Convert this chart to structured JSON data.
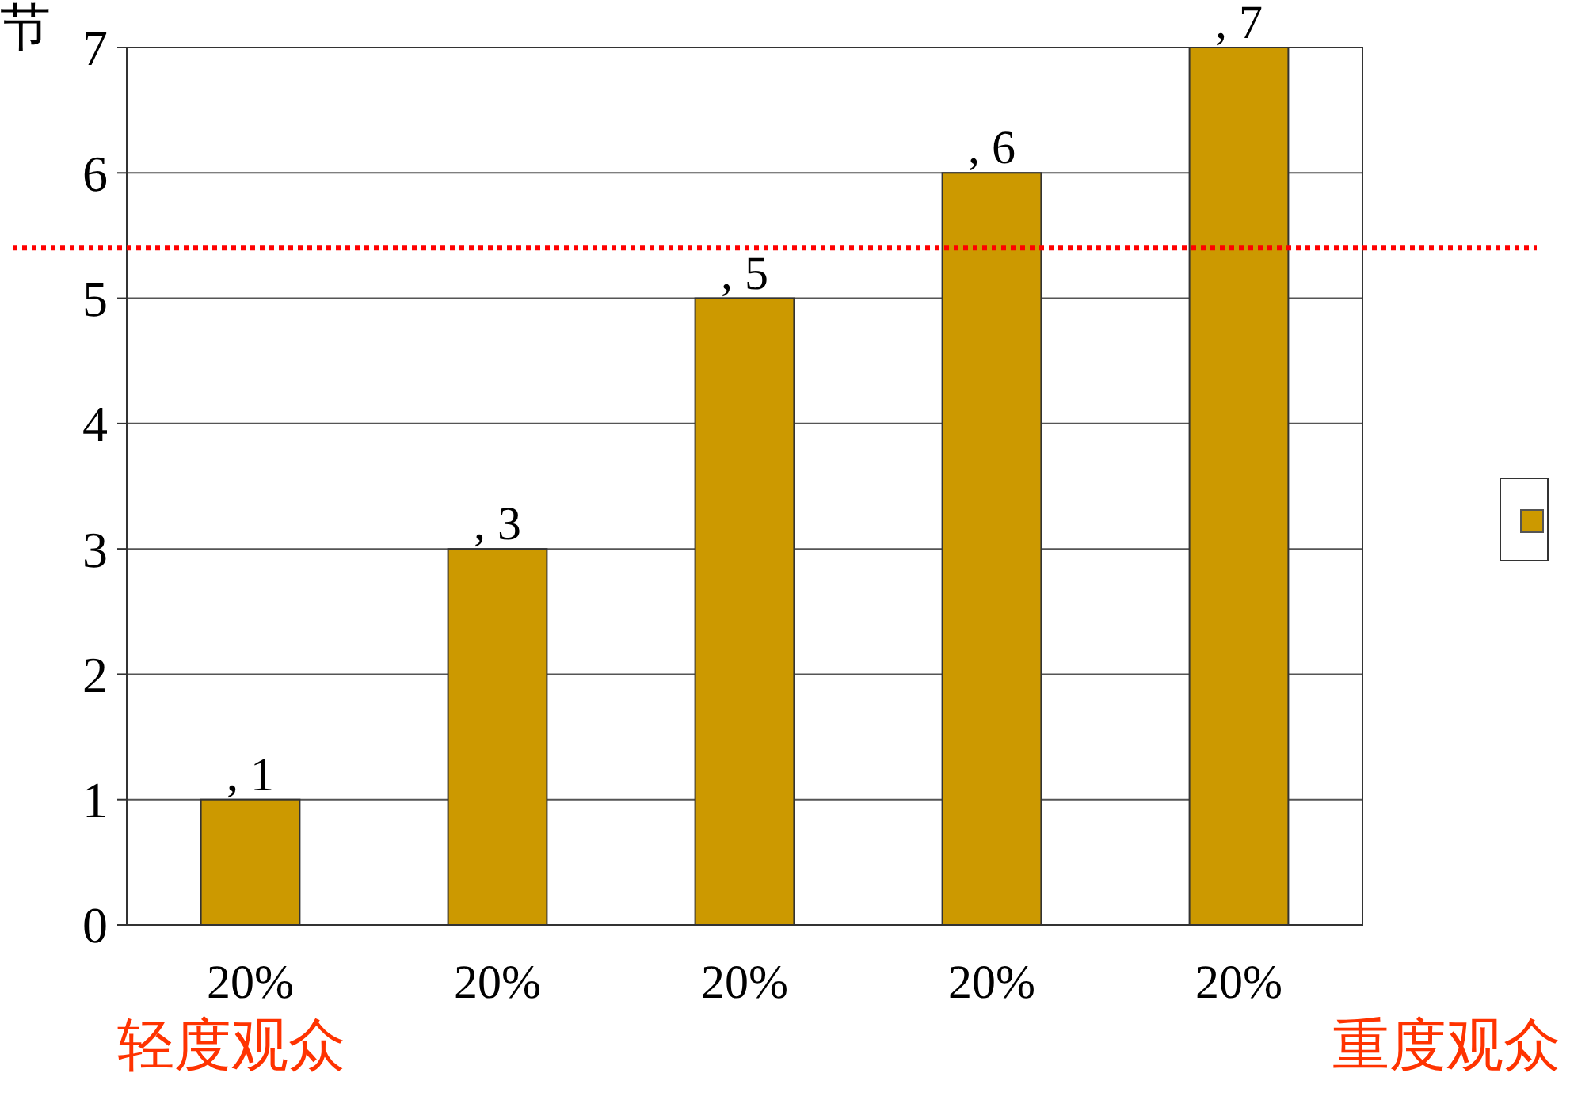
{
  "chart_data": {
    "type": "bar",
    "ylabel": "节",
    "categories": [
      "20%",
      "20%",
      "20%",
      "20%",
      "20%"
    ],
    "series": [
      {
        "color": "#cc9900",
        "values": [
          1,
          3,
          5,
          6,
          7
        ],
        "value_labels": [
          ", 1",
          ", 3",
          ", 5",
          ", 6",
          ", 7"
        ]
      }
    ],
    "ylim": [
      0,
      7
    ],
    "yticks": [
      0,
      1,
      2,
      3,
      4,
      5,
      6,
      7
    ],
    "grid": "y",
    "ref_lines": [
      {
        "axis": "y",
        "value": 5.4,
        "color": "#ff0000",
        "line_style": "dotted"
      }
    ],
    "annotations": [
      "轻度观众",
      "重度观众"
    ]
  }
}
